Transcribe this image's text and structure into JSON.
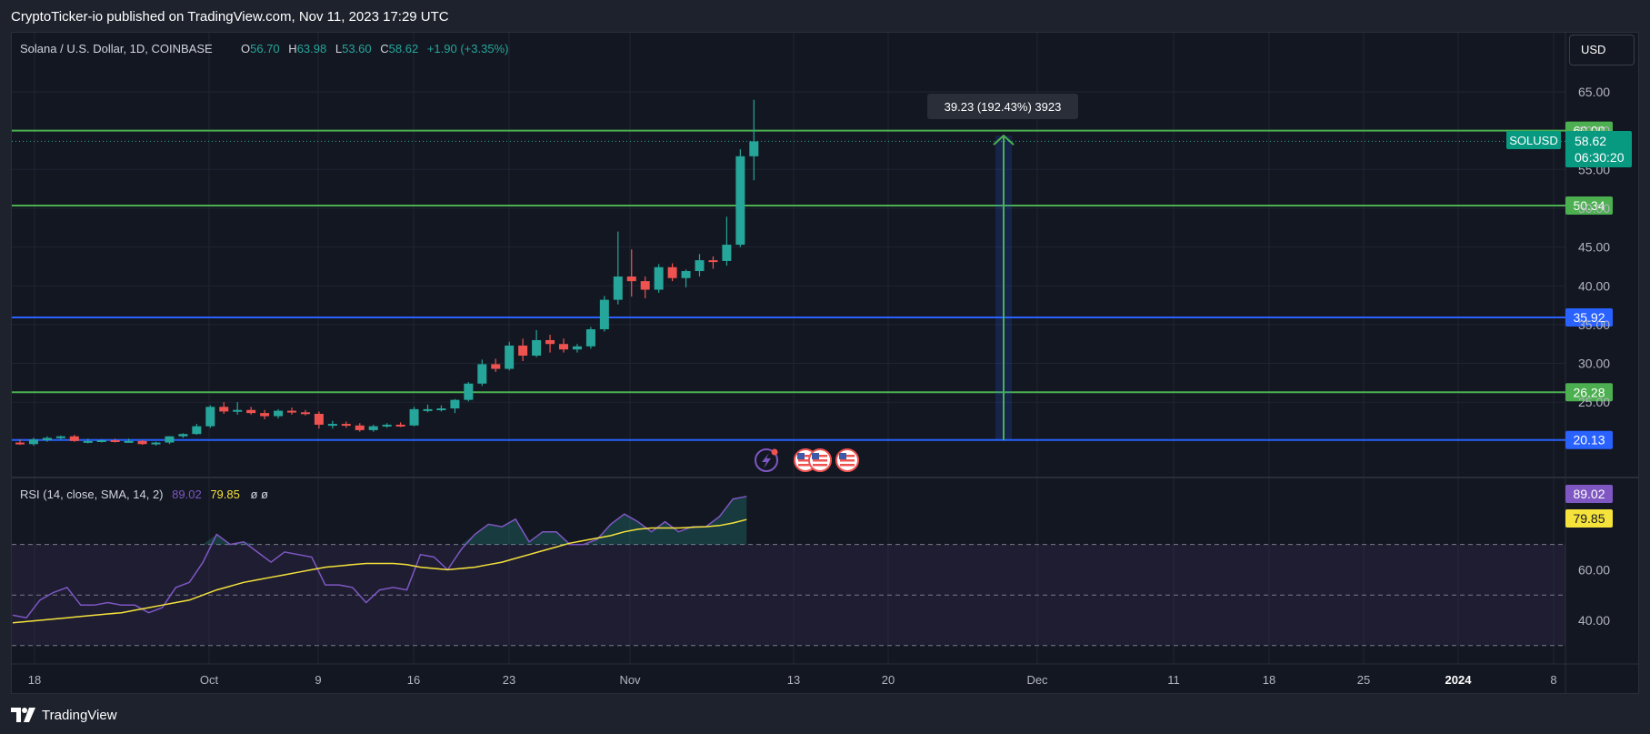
{
  "header": {
    "published": "CryptoTicker-io published on TradingView.com, Nov 11, 2023 17:29 UTC"
  },
  "footer": {
    "brand": "TradingView"
  },
  "currency_button": "USD",
  "colors": {
    "up": "#26a69a",
    "down": "#ef5350",
    "green_line": "#4caf50",
    "blue_line": "#2962ff",
    "rsi": "#7e57c2",
    "rsi_ma": "#f5e23b",
    "background": "#131722"
  },
  "legend": {
    "symbol": "Solana / U.S. Dollar, 1D, COINBASE",
    "o_label": "O",
    "o_value": "56.70",
    "h_label": "H",
    "h_value": "63.98",
    "l_label": "L",
    "l_value": "53.60",
    "c_label": "C",
    "c_value": "58.62",
    "change": "+1.90 (+3.35%)"
  },
  "rsi_legend": {
    "label": "RSI (14, close, SMA, 14, 2)",
    "rsi_value": "89.02",
    "ma_value": "79.85",
    "extra": "ø  ø"
  },
  "measure_tooltip": "39.23 (192.43%) 3923",
  "price_badge": {
    "symbol": "SOLUSD",
    "price": "58.62",
    "countdown": "06:30:20"
  },
  "icons": [
    "lightning-icon",
    "us-flag-icon",
    "us-flag-icon",
    "us-flag-icon"
  ],
  "chart_data": [
    {
      "type": "candlestick",
      "title": "Solana / U.S. Dollar, 1D, COINBASE",
      "y_ticks": [
        25,
        30,
        35,
        40,
        45,
        50,
        55,
        60,
        65
      ],
      "ylim": [
        19.0,
        66.8
      ],
      "x_ticks": [
        "18",
        "Oct",
        "9",
        "16",
        "23",
        "Nov",
        "13",
        "20",
        "Dec",
        "11",
        "18",
        "25",
        "2024",
        "8"
      ],
      "candles": [
        {
          "o": 19.8,
          "h": 20.2,
          "l": 19.5,
          "c": 19.6
        },
        {
          "o": 19.6,
          "h": 20.4,
          "l": 19.4,
          "c": 20.2
        },
        {
          "o": 20.1,
          "h": 20.6,
          "l": 19.9,
          "c": 20.4
        },
        {
          "o": 20.4,
          "h": 20.7,
          "l": 20.2,
          "c": 20.6
        },
        {
          "o": 20.6,
          "h": 20.8,
          "l": 19.9,
          "c": 20.0
        },
        {
          "o": 20.0,
          "h": 20.3,
          "l": 19.7,
          "c": 20.0
        },
        {
          "o": 20.0,
          "h": 20.2,
          "l": 19.8,
          "c": 20.1
        },
        {
          "o": 20.1,
          "h": 20.3,
          "l": 19.8,
          "c": 19.9
        },
        {
          "o": 19.9,
          "h": 20.3,
          "l": 19.8,
          "c": 20.0
        },
        {
          "o": 20.0,
          "h": 20.1,
          "l": 19.5,
          "c": 19.6
        },
        {
          "o": 19.6,
          "h": 19.9,
          "l": 19.4,
          "c": 19.8
        },
        {
          "o": 19.8,
          "h": 20.6,
          "l": 19.6,
          "c": 20.6
        },
        {
          "o": 20.6,
          "h": 21.0,
          "l": 20.4,
          "c": 20.9
        },
        {
          "o": 20.9,
          "h": 22.2,
          "l": 20.8,
          "c": 21.9
        },
        {
          "o": 21.9,
          "h": 24.6,
          "l": 21.7,
          "c": 24.4
        },
        {
          "o": 24.4,
          "h": 25.0,
          "l": 23.5,
          "c": 23.8
        },
        {
          "o": 23.8,
          "h": 25.0,
          "l": 23.4,
          "c": 24.0
        },
        {
          "o": 24.0,
          "h": 24.4,
          "l": 23.4,
          "c": 23.6
        },
        {
          "o": 23.6,
          "h": 24.0,
          "l": 22.8,
          "c": 23.2
        },
        {
          "o": 23.2,
          "h": 24.1,
          "l": 22.9,
          "c": 23.9
        },
        {
          "o": 23.9,
          "h": 24.3,
          "l": 23.4,
          "c": 23.7
        },
        {
          "o": 23.7,
          "h": 24.0,
          "l": 23.3,
          "c": 23.5
        },
        {
          "o": 23.5,
          "h": 23.8,
          "l": 21.6,
          "c": 22.1
        },
        {
          "o": 22.1,
          "h": 22.6,
          "l": 21.6,
          "c": 22.2
        },
        {
          "o": 22.2,
          "h": 22.5,
          "l": 21.7,
          "c": 22.0
        },
        {
          "o": 22.0,
          "h": 22.3,
          "l": 21.2,
          "c": 21.4
        },
        {
          "o": 21.4,
          "h": 22.1,
          "l": 21.2,
          "c": 21.9
        },
        {
          "o": 21.9,
          "h": 22.3,
          "l": 21.7,
          "c": 22.1
        },
        {
          "o": 22.1,
          "h": 22.4,
          "l": 21.8,
          "c": 22.0
        },
        {
          "o": 22.0,
          "h": 24.4,
          "l": 21.9,
          "c": 24.1
        },
        {
          "o": 24.1,
          "h": 24.7,
          "l": 23.7,
          "c": 24.1
        },
        {
          "o": 24.1,
          "h": 24.6,
          "l": 23.8,
          "c": 24.2
        },
        {
          "o": 24.2,
          "h": 25.4,
          "l": 23.6,
          "c": 25.3
        },
        {
          "o": 25.3,
          "h": 27.6,
          "l": 25.1,
          "c": 27.4
        },
        {
          "o": 27.4,
          "h": 30.5,
          "l": 27.1,
          "c": 29.9
        },
        {
          "o": 29.9,
          "h": 30.6,
          "l": 28.9,
          "c": 29.3
        },
        {
          "o": 29.3,
          "h": 32.8,
          "l": 29.1,
          "c": 32.3
        },
        {
          "o": 32.3,
          "h": 33.2,
          "l": 30.3,
          "c": 31.0
        },
        {
          "o": 31.0,
          "h": 34.3,
          "l": 30.8,
          "c": 33.0
        },
        {
          "o": 33.0,
          "h": 33.7,
          "l": 31.4,
          "c": 32.5
        },
        {
          "o": 32.5,
          "h": 33.2,
          "l": 31.4,
          "c": 31.8
        },
        {
          "o": 31.8,
          "h": 32.5,
          "l": 31.4,
          "c": 32.2
        },
        {
          "o": 32.2,
          "h": 34.7,
          "l": 31.9,
          "c": 34.4
        },
        {
          "o": 34.4,
          "h": 38.7,
          "l": 34.1,
          "c": 38.2
        },
        {
          "o": 38.2,
          "h": 47.0,
          "l": 37.6,
          "c": 41.2
        },
        {
          "o": 41.2,
          "h": 44.7,
          "l": 38.6,
          "c": 40.6
        },
        {
          "o": 40.6,
          "h": 41.2,
          "l": 38.4,
          "c": 39.5
        },
        {
          "o": 39.5,
          "h": 42.8,
          "l": 39.1,
          "c": 42.4
        },
        {
          "o": 42.4,
          "h": 42.9,
          "l": 40.6,
          "c": 41.0
        },
        {
          "o": 41.0,
          "h": 42.1,
          "l": 39.8,
          "c": 41.9
        },
        {
          "o": 41.9,
          "h": 44.1,
          "l": 41.2,
          "c": 43.3
        },
        {
          "o": 43.3,
          "h": 43.8,
          "l": 42.2,
          "c": 43.2
        },
        {
          "o": 43.2,
          "h": 48.9,
          "l": 42.6,
          "c": 45.3
        },
        {
          "o": 45.3,
          "h": 57.6,
          "l": 45.0,
          "c": 56.7
        },
        {
          "o": 56.7,
          "h": 63.98,
          "l": 53.6,
          "c": 58.62
        }
      ],
      "horizontal_levels": [
        {
          "value": "60.00",
          "price": 60.0,
          "color": "#4caf50"
        },
        {
          "value": "50.34",
          "price": 50.34,
          "color": "#4caf50"
        },
        {
          "value": "35.92",
          "price": 35.92,
          "color": "#2962ff"
        },
        {
          "value": "26.28",
          "price": 26.28,
          "color": "#4caf50"
        },
        {
          "value": "20.13",
          "price": 20.13,
          "color": "#2962ff"
        }
      ],
      "measure": {
        "from": 20.13,
        "to": 59.36,
        "change": 39.23,
        "percent": 192.43,
        "ticks": 3923
      }
    },
    {
      "type": "line",
      "title": "RSI (14, close, SMA, 14, 2)",
      "y_ticks": [
        40,
        60
      ],
      "ylim": [
        24,
        88
      ],
      "bands": [
        30,
        50,
        70
      ],
      "series": [
        {
          "name": "RSI",
          "color": "#7e57c2",
          "values": [
            42,
            41,
            48,
            51,
            53,
            46,
            46,
            47,
            46,
            46,
            43,
            45,
            53,
            55,
            63,
            74,
            70,
            71,
            67,
            63,
            67,
            66,
            65,
            54,
            54,
            53,
            47,
            52,
            53,
            52,
            66,
            65,
            60,
            68,
            74,
            78,
            77,
            80,
            71,
            75,
            75,
            70,
            70,
            72,
            78,
            82,
            79,
            75,
            79,
            75,
            77,
            77,
            81,
            88,
            89
          ]
        },
        {
          "name": "MA",
          "color": "#f5e23b",
          "values": [
            39,
            39.5,
            40,
            40.5,
            41,
            41.5,
            42,
            42.5,
            43,
            44,
            45,
            46,
            47,
            48,
            50,
            52,
            53.5,
            55,
            56,
            57,
            58,
            59,
            60,
            61,
            61.5,
            62,
            62.5,
            62.5,
            62.5,
            62,
            61,
            60.5,
            60,
            60.5,
            61,
            62,
            63,
            64.5,
            66,
            67.5,
            69,
            70.5,
            71.5,
            72.5,
            73.5,
            75,
            76,
            76.5,
            76.5,
            76.5,
            76.8,
            77,
            77.5,
            78.5,
            79.85
          ]
        }
      ]
    }
  ]
}
